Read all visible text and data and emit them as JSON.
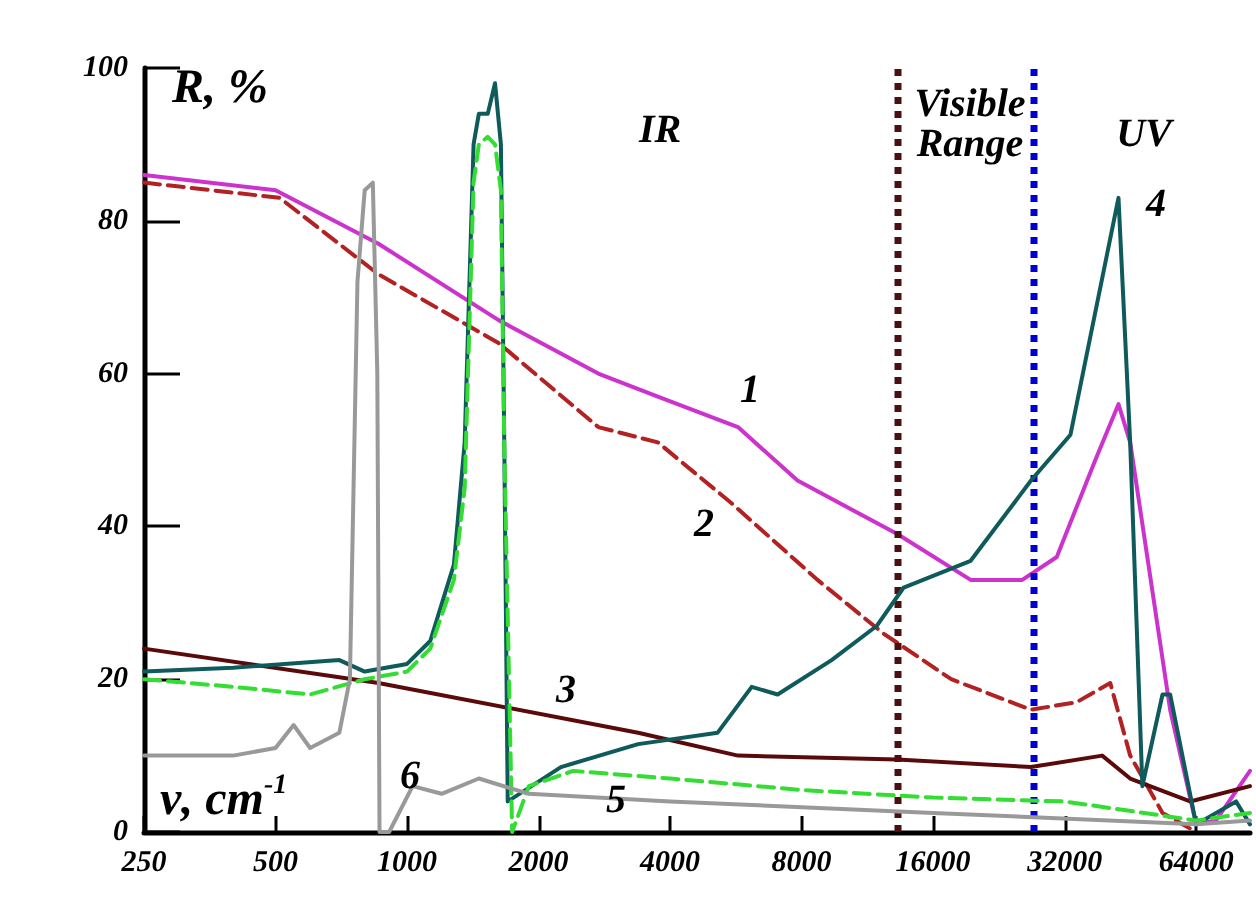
{
  "chart_data": {
    "type": "line",
    "xlabel": "ν, cm$^{-1}$",
    "ylabel": "R, %",
    "log": "x",
    "xlim": [
      250,
      85000
    ],
    "xticks": [
      250,
      500,
      1000,
      2000,
      4000,
      8000,
      16000,
      32000,
      64000
    ],
    "ylim": [
      0,
      100
    ],
    "yticks": [
      0,
      20,
      40,
      60,
      80,
      100
    ],
    "grid": false,
    "marker": "none",
    "series": [
      {
        "color": "#cc33cc",
        "line_style": "solid",
        "x": [
          250,
          500,
          860,
          1620,
          2740,
          3750,
          5720,
          7830,
          13250,
          19500,
          25600,
          30700,
          37800,
          42500,
          45200,
          55800,
          64000,
          71000,
          85000
        ],
        "values": [
          86,
          84,
          77,
          67,
          60,
          57,
          53,
          46,
          39,
          33,
          33,
          36,
          49,
          56,
          51,
          16,
          1,
          1.5,
          8
        ]
      },
      {
        "color": "#b22222",
        "line_style": "dashed",
        "x": [
          250,
          511,
          860,
          1620,
          2740,
          3750,
          5540,
          8700,
          12300,
          17600,
          26800,
          34100,
          40700,
          45200,
          53600,
          64000
        ],
        "values": [
          85,
          83,
          73,
          64,
          53,
          51,
          43,
          33,
          26,
          20,
          16,
          17,
          19.5,
          10,
          2.5,
          0
        ]
      },
      {
        "color": "#5a0a0a",
        "line_style": "solid",
        "x": [
          250,
          860,
          3380,
          5720,
          13250,
          26800,
          39000,
          45200,
          62000,
          85000
        ],
        "values": [
          24,
          19.5,
          13,
          10,
          9.5,
          8.5,
          10,
          7,
          4,
          6
        ]
      },
      {
        "color": "#0f5a5a",
        "line_style": "solid",
        "x": [
          250,
          400,
          700,
          800,
          1000,
          1130,
          1280,
          1355,
          1420,
          1460,
          1530,
          1590,
          1640,
          1670,
          1700,
          2250,
          3380,
          5140,
          6150,
          7050,
          9370,
          11900,
          13700,
          19500,
          26800,
          33000,
          42500,
          45200,
          48200,
          53600,
          55800,
          64000,
          79000,
          85000
        ],
        "values": [
          21,
          21.5,
          22.5,
          21,
          22,
          25,
          35,
          51,
          90,
          94,
          94,
          98,
          90,
          50,
          4,
          8.5,
          11.5,
          13,
          19,
          18,
          22.5,
          27,
          32,
          35.5,
          46,
          52,
          83,
          51,
          6,
          18,
          18,
          1,
          4,
          1
        ]
      },
      {
        "color": "#33dd33",
        "line_style": "dashed",
        "x": [
          250,
          400,
          600,
          800,
          1000,
          1130,
          1280,
          1355,
          1420,
          1460,
          1530,
          1590,
          1640,
          1670,
          1740,
          1900,
          2400,
          4000,
          8000,
          16000,
          32000,
          64000,
          85000
        ],
        "values": [
          20,
          19,
          18,
          20,
          21,
          24,
          33,
          45,
          85,
          90,
          91,
          90,
          84,
          50,
          0,
          6,
          8,
          7,
          5.5,
          4.5,
          4,
          1.5,
          2.5
        ]
      },
      {
        "color": "#999999",
        "line_style": "solid",
        "x": [
          250,
          400,
          500,
          550,
          600,
          700,
          740,
          770,
          800,
          835,
          855,
          865,
          910,
          1030,
          1200,
          1460,
          1900,
          4000,
          16000,
          64000,
          85000
        ],
        "values": [
          10,
          10,
          11,
          14,
          11,
          13,
          20,
          72,
          84,
          85,
          60,
          0,
          0,
          6,
          5,
          7,
          5,
          4,
          2.5,
          1,
          1.5
        ]
      }
    ],
    "ref_lines": [
      {
        "axis": "x",
        "value": 13300,
        "color": "#4a0f0f",
        "line_style": "dotted"
      },
      {
        "axis": "x",
        "value": 27300,
        "color": "#0000cc",
        "line_style": "dotted"
      }
    ],
    "annotations": [
      "1",
      "2",
      "3",
      "4",
      "5",
      "6",
      "IR",
      "Visible\nRange",
      "UV"
    ]
  }
}
